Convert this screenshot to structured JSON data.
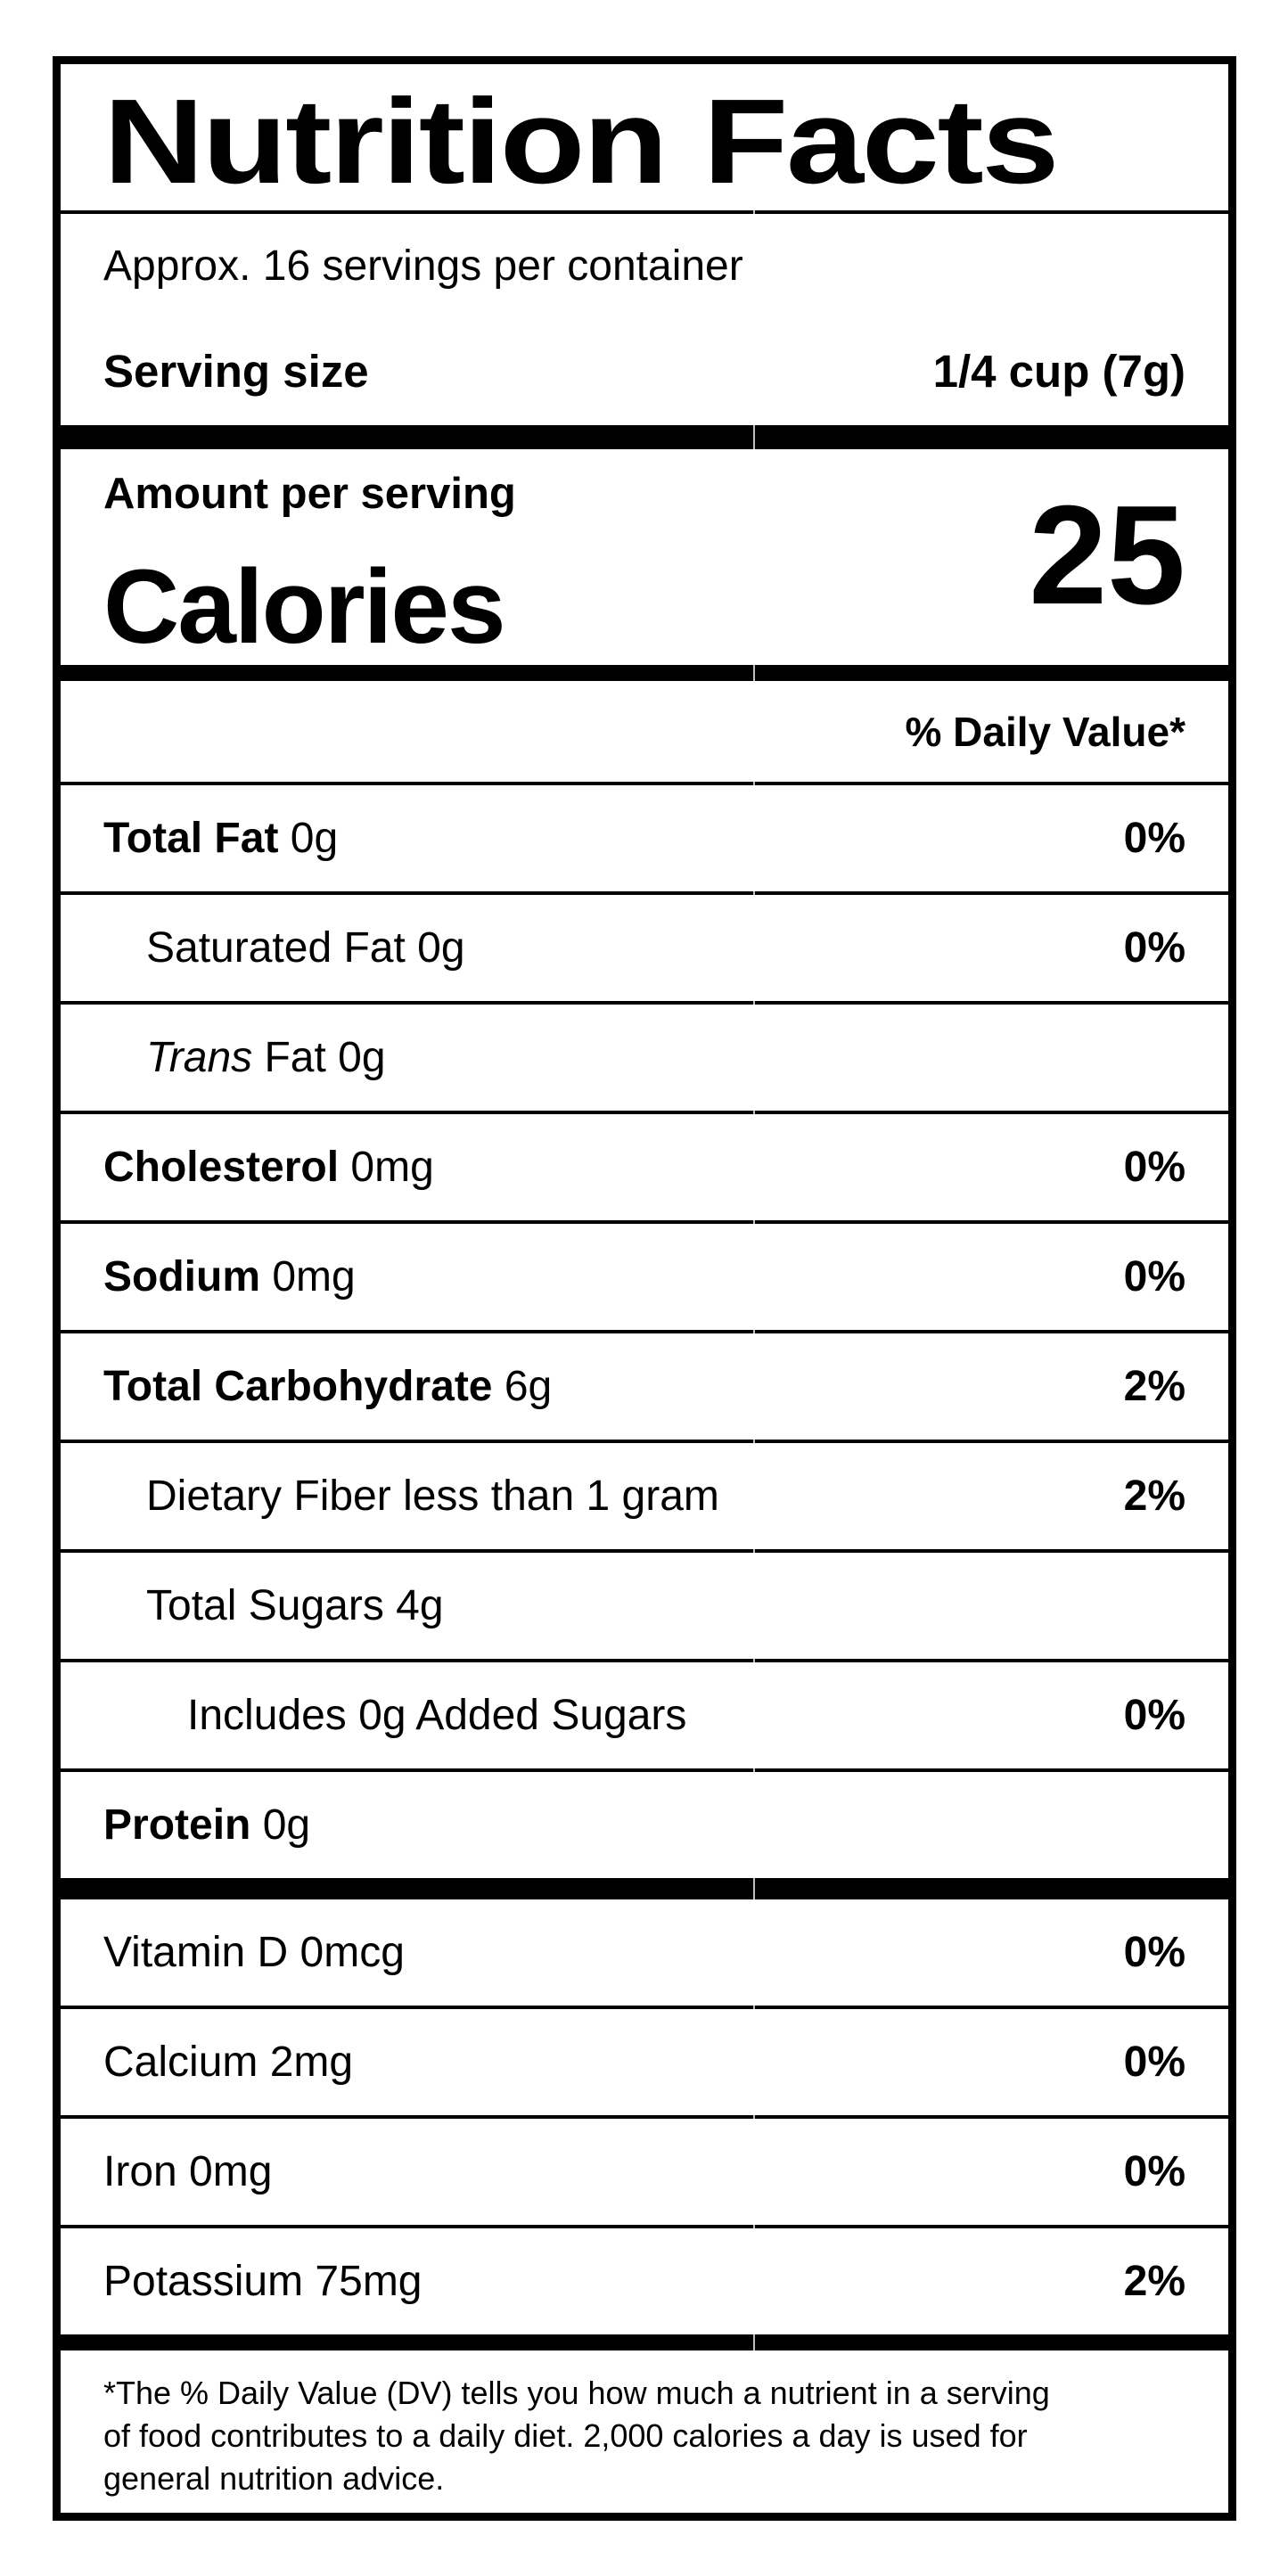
{
  "page": {
    "background_color": "#ffffff",
    "text_color": "#000000",
    "border_color": "#000000"
  },
  "label": {
    "title": "Nutrition Facts",
    "servings_per_container": "Approx. 16 servings per container",
    "serving_size": {
      "label": "Serving size",
      "value": "1/4 cup (7g)"
    },
    "calories": {
      "heading": "Amount per serving",
      "label": "Calories",
      "value": "25"
    },
    "daily_value_header": "% Daily Value*",
    "nutrient_rows": [
      {
        "indent": 0,
        "parts": [
          {
            "text": "Total Fat",
            "style": "bold"
          },
          {
            "text": " 0g",
            "style": "regular"
          }
        ],
        "dv": "0%"
      },
      {
        "indent": 1,
        "parts": [
          {
            "text": "Saturated Fat 0g",
            "style": "regular"
          }
        ],
        "dv": "0%"
      },
      {
        "indent": 1,
        "parts": [
          {
            "text": "Trans",
            "style": "italic"
          },
          {
            "text": " Fat 0g",
            "style": "regular"
          }
        ],
        "dv": ""
      },
      {
        "indent": 0,
        "parts": [
          {
            "text": "Cholesterol",
            "style": "bold"
          },
          {
            "text": " 0mg",
            "style": "regular"
          }
        ],
        "dv": "0%"
      },
      {
        "indent": 0,
        "parts": [
          {
            "text": "Sodium",
            "style": "bold"
          },
          {
            "text": " 0mg",
            "style": "regular"
          }
        ],
        "dv": "0%"
      },
      {
        "indent": 0,
        "parts": [
          {
            "text": "Total Carbohydrate",
            "style": "bold"
          },
          {
            "text": " 6g",
            "style": "regular"
          }
        ],
        "dv": "2%"
      },
      {
        "indent": 1,
        "parts": [
          {
            "text": "Dietary Fiber less than 1 gram",
            "style": "regular"
          }
        ],
        "dv": "2%"
      },
      {
        "indent": 1,
        "parts": [
          {
            "text": "Total Sugars 4g",
            "style": "regular"
          }
        ],
        "dv": ""
      },
      {
        "indent": 2,
        "parts": [
          {
            "text": "Includes 0g Added Sugars",
            "style": "regular"
          }
        ],
        "dv": "0%"
      },
      {
        "indent": 0,
        "parts": [
          {
            "text": "Protein",
            "style": "bold"
          },
          {
            "text": " 0g",
            "style": "regular"
          }
        ],
        "dv": ""
      }
    ],
    "micronutrient_rows": [
      {
        "parts": [
          {
            "text": "Vitamin D 0mcg",
            "style": "regular"
          }
        ],
        "dv": "0%"
      },
      {
        "parts": [
          {
            "text": "Calcium 2mg",
            "style": "regular"
          }
        ],
        "dv": "0%"
      },
      {
        "parts": [
          {
            "text": "Iron 0mg",
            "style": "regular"
          }
        ],
        "dv": "0%"
      },
      {
        "parts": [
          {
            "text": "Potassium 75mg",
            "style": "regular"
          }
        ],
        "dv": "2%"
      }
    ],
    "footnote_lines": [
      "*The % Daily Value (DV) tells you how much a nutrient in a serving",
      "of food contributes to a daily diet. 2,000 calories a day is used for",
      "general nutrition advice."
    ]
  }
}
